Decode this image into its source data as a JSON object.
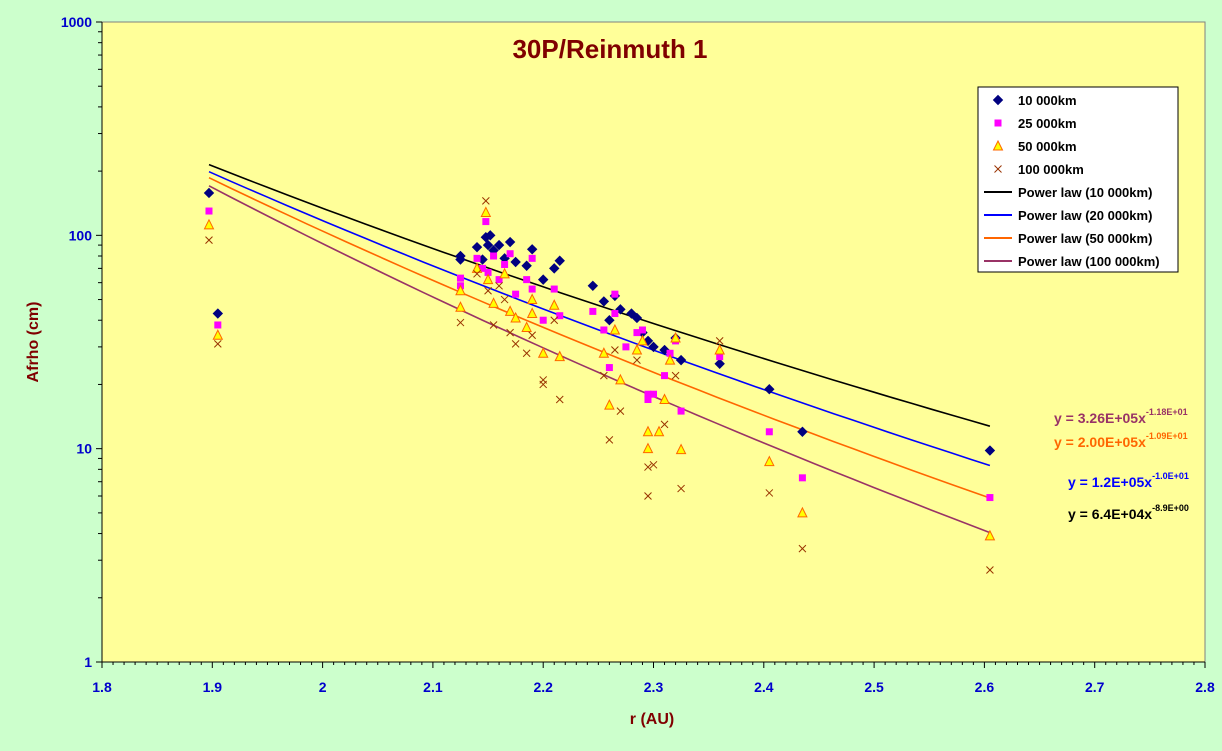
{
  "chart_data": {
    "type": "scatter",
    "title": "30P/Reinmuth 1",
    "xlabel": "r (AU)",
    "ylabel": "Afrho (cm)",
    "xlim": [
      1.8,
      2.8
    ],
    "ylim": [
      1,
      1000
    ],
    "yscale": "log",
    "x_ticks": [
      "1.8",
      "1.9",
      "2",
      "2.1",
      "2.2",
      "2.3",
      "2.4",
      "2.5",
      "2.6",
      "2.7",
      "2.8"
    ],
    "y_ticks": [
      "1",
      "10",
      "100",
      "1000"
    ],
    "grid": false,
    "legend_position": "top-right",
    "colors": {
      "plot_bg": "#ffff99",
      "outer_bg": "#ccffcc",
      "s10000": "#000080",
      "s25000": "#ff00ff",
      "s50000_fill": "#ffff00",
      "s50000_stroke": "#ff6600",
      "s100000": "#993300",
      "pl10000": "#000000",
      "pl20000": "#0000ff",
      "pl50000": "#ff6600",
      "pl100000": "#993366"
    },
    "series": [
      {
        "name": "10 000km",
        "marker": "diamond",
        "color": "#000080",
        "points": [
          [
            1.897,
            158
          ],
          [
            1.905,
            43
          ],
          [
            2.125,
            80
          ],
          [
            2.125,
            77
          ],
          [
            2.14,
            88
          ],
          [
            2.145,
            77
          ],
          [
            2.148,
            98
          ],
          [
            2.15,
            90
          ],
          [
            2.152,
            100
          ],
          [
            2.155,
            85
          ],
          [
            2.16,
            90
          ],
          [
            2.165,
            78
          ],
          [
            2.17,
            93
          ],
          [
            2.175,
            75
          ],
          [
            2.185,
            72
          ],
          [
            2.19,
            86
          ],
          [
            2.2,
            62
          ],
          [
            2.21,
            70
          ],
          [
            2.215,
            76
          ],
          [
            2.245,
            58
          ],
          [
            2.255,
            49
          ],
          [
            2.26,
            40
          ],
          [
            2.265,
            52
          ],
          [
            2.27,
            45
          ],
          [
            2.28,
            43
          ],
          [
            2.285,
            41
          ],
          [
            2.29,
            35
          ],
          [
            2.295,
            32
          ],
          [
            2.3,
            30
          ],
          [
            2.31,
            29
          ],
          [
            2.32,
            33
          ],
          [
            2.325,
            26
          ],
          [
            2.36,
            25
          ],
          [
            2.405,
            19
          ],
          [
            2.435,
            12
          ],
          [
            2.605,
            9.8
          ]
        ]
      },
      {
        "name": "25 000km",
        "marker": "square",
        "color": "#ff00ff",
        "points": [
          [
            1.897,
            130
          ],
          [
            1.905,
            38
          ],
          [
            2.125,
            63
          ],
          [
            2.125,
            58
          ],
          [
            2.14,
            78
          ],
          [
            2.145,
            70
          ],
          [
            2.148,
            116
          ],
          [
            2.15,
            67
          ],
          [
            2.155,
            80
          ],
          [
            2.16,
            62
          ],
          [
            2.165,
            73
          ],
          [
            2.17,
            82
          ],
          [
            2.175,
            53
          ],
          [
            2.185,
            62
          ],
          [
            2.19,
            78
          ],
          [
            2.19,
            56
          ],
          [
            2.2,
            40
          ],
          [
            2.21,
            56
          ],
          [
            2.215,
            42
          ],
          [
            2.245,
            44
          ],
          [
            2.255,
            36
          ],
          [
            2.26,
            24
          ],
          [
            2.265,
            53
          ],
          [
            2.265,
            43
          ],
          [
            2.275,
            30
          ],
          [
            2.285,
            35
          ],
          [
            2.29,
            36
          ],
          [
            2.295,
            17
          ],
          [
            2.295,
            18
          ],
          [
            2.3,
            18
          ],
          [
            2.31,
            22
          ],
          [
            2.315,
            28
          ],
          [
            2.32,
            32
          ],
          [
            2.325,
            15
          ],
          [
            2.36,
            27
          ],
          [
            2.405,
            12
          ],
          [
            2.435,
            7.3
          ],
          [
            2.605,
            5.9
          ]
        ]
      },
      {
        "name": "50 000km",
        "marker": "triangle",
        "color": "#ff6600",
        "fill": "#ffff00",
        "points": [
          [
            1.897,
            112
          ],
          [
            1.905,
            34
          ],
          [
            2.125,
            55
          ],
          [
            2.125,
            46
          ],
          [
            2.14,
            70
          ],
          [
            2.148,
            128
          ],
          [
            2.15,
            62
          ],
          [
            2.155,
            48
          ],
          [
            2.165,
            66
          ],
          [
            2.17,
            44
          ],
          [
            2.175,
            41
          ],
          [
            2.185,
            37
          ],
          [
            2.19,
            43
          ],
          [
            2.19,
            50
          ],
          [
            2.2,
            28
          ],
          [
            2.21,
            47
          ],
          [
            2.215,
            27
          ],
          [
            2.255,
            28
          ],
          [
            2.26,
            16
          ],
          [
            2.265,
            36
          ],
          [
            2.27,
            21
          ],
          [
            2.285,
            29
          ],
          [
            2.29,
            32
          ],
          [
            2.295,
            12
          ],
          [
            2.295,
            10
          ],
          [
            2.305,
            12
          ],
          [
            2.31,
            17
          ],
          [
            2.315,
            26
          ],
          [
            2.32,
            33
          ],
          [
            2.325,
            9.9
          ],
          [
            2.36,
            29
          ],
          [
            2.405,
            8.7
          ],
          [
            2.435,
            5
          ],
          [
            2.605,
            3.9
          ]
        ]
      },
      {
        "name": "100 000km",
        "marker": "x",
        "color": "#993300",
        "points": [
          [
            1.897,
            95
          ],
          [
            1.905,
            31
          ],
          [
            2.125,
            39
          ],
          [
            2.14,
            66
          ],
          [
            2.148,
            145
          ],
          [
            2.15,
            55
          ],
          [
            2.155,
            38
          ],
          [
            2.16,
            58
          ],
          [
            2.165,
            50
          ],
          [
            2.17,
            35
          ],
          [
            2.175,
            31
          ],
          [
            2.185,
            28
          ],
          [
            2.19,
            34
          ],
          [
            2.2,
            20
          ],
          [
            2.2,
            21
          ],
          [
            2.21,
            40
          ],
          [
            2.215,
            17
          ],
          [
            2.255,
            22
          ],
          [
            2.26,
            11
          ],
          [
            2.265,
            29
          ],
          [
            2.27,
            15
          ],
          [
            2.285,
            26
          ],
          [
            2.295,
            8.2
          ],
          [
            2.295,
            6
          ],
          [
            2.3,
            8.4
          ],
          [
            2.31,
            13
          ],
          [
            2.32,
            22
          ],
          [
            2.325,
            6.5
          ],
          [
            2.36,
            32
          ],
          [
            2.405,
            6.2
          ],
          [
            2.435,
            3.4
          ],
          [
            2.605,
            2.7
          ]
        ]
      }
    ],
    "fits": [
      {
        "name": "Power law (10 000km)",
        "color": "#000000",
        "a": 64000,
        "b": -8.9,
        "x_range": [
          1.897,
          2.605
        ]
      },
      {
        "name": "Power law (20 000km)",
        "color": "#0000ff",
        "a": 120000,
        "b": -10.0,
        "x_range": [
          1.897,
          2.605
        ]
      },
      {
        "name": "Power law (50 000km)",
        "color": "#ff6600",
        "a": 200000,
        "b": -10.9,
        "x_range": [
          1.897,
          2.605
        ]
      },
      {
        "name": "Power law (100 000km)",
        "color": "#993366",
        "a": 326000,
        "b": -11.8,
        "x_range": [
          1.897,
          2.605
        ]
      }
    ],
    "equations": [
      {
        "base": "y = 3.26E+05x",
        "exp": "-1.18E+01",
        "color": "#993366"
      },
      {
        "base": "y = 2.00E+05x",
        "exp": "-1.09E+01",
        "color": "#ff6600"
      },
      {
        "base": "y = 1.2E+05x",
        "exp": "-1.0E+01",
        "color": "#0000ff"
      },
      {
        "base": "y = 6.4E+04x",
        "exp": "-8.9E+00",
        "color": "#000000"
      }
    ]
  }
}
